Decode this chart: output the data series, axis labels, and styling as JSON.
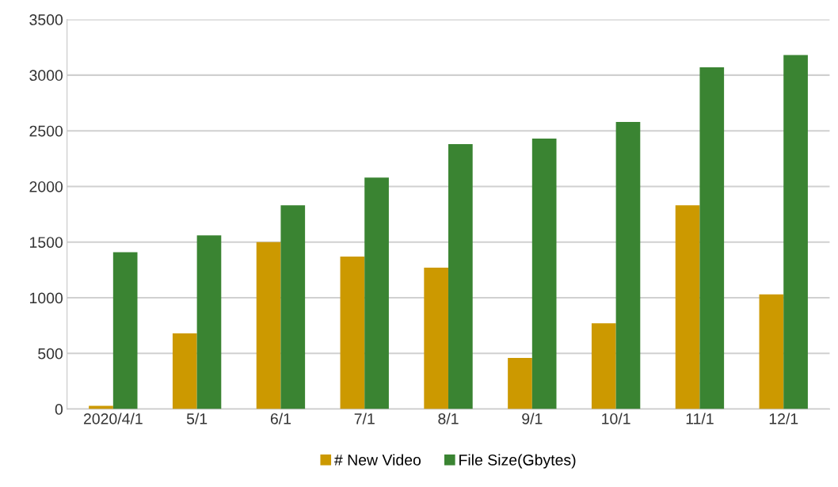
{
  "chart_data": {
    "type": "bar",
    "categories": [
      "2020/4/1",
      "5/1",
      "6/1",
      "7/1",
      "8/1",
      "9/1",
      "10/1",
      "11/1",
      "12/1"
    ],
    "series": [
      {
        "name": "# New Video",
        "color": "#cc9900",
        "values": [
          30,
          680,
          1500,
          1370,
          1270,
          460,
          770,
          1830,
          1030
        ]
      },
      {
        "name": "File Size(Gbytes)",
        "color": "#3a8432",
        "values": [
          1410,
          1560,
          1830,
          2080,
          2380,
          2430,
          2580,
          3070,
          3180
        ]
      }
    ],
    "ylim": [
      0,
      3500
    ],
    "yticks": [
      0,
      500,
      1000,
      1500,
      2000,
      2500,
      3000,
      3500
    ],
    "grid": "y",
    "legend": "bottom"
  }
}
